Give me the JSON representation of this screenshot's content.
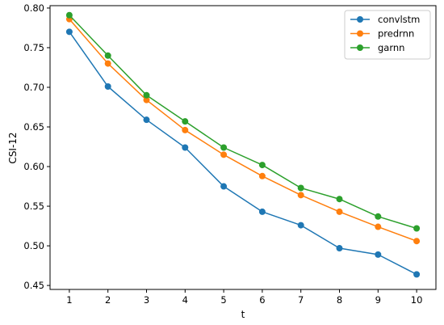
{
  "chart_data": {
    "type": "line",
    "x": [
      1,
      2,
      3,
      4,
      5,
      6,
      7,
      8,
      9,
      10
    ],
    "xlabel": "t",
    "ylabel": "CSI-12",
    "xlim": [
      0.5,
      10.5
    ],
    "ylim": [
      0.445,
      0.803
    ],
    "x_ticks": [
      "1",
      "2",
      "3",
      "4",
      "5",
      "6",
      "7",
      "8",
      "9",
      "10"
    ],
    "y_ticks": [
      "0.45",
      "0.50",
      "0.55",
      "0.60",
      "0.65",
      "0.70",
      "0.75",
      "0.80"
    ],
    "grid": false,
    "legend_position": "top-right",
    "series": [
      {
        "name": "convlstm",
        "color": "#1f77b4",
        "values": [
          0.77,
          0.701,
          0.659,
          0.624,
          0.575,
          0.543,
          0.526,
          0.497,
          0.489,
          0.464
        ]
      },
      {
        "name": "predrnn",
        "color": "#ff7f0e",
        "values": [
          0.786,
          0.73,
          0.684,
          0.646,
          0.615,
          0.588,
          0.564,
          0.543,
          0.524,
          0.506
        ]
      },
      {
        "name": "garnn",
        "color": "#2ca02c",
        "values": [
          0.791,
          0.74,
          0.69,
          0.657,
          0.624,
          0.602,
          0.573,
          0.559,
          0.537,
          0.522
        ]
      }
    ]
  }
}
